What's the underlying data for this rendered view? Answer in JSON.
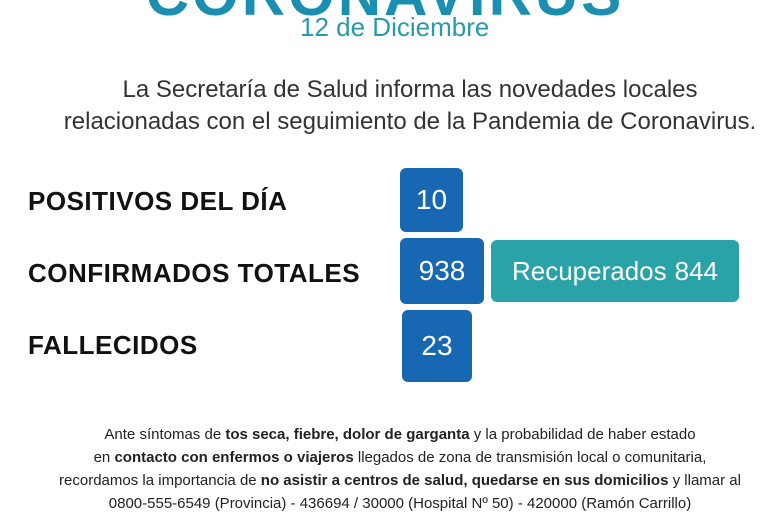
{
  "header": {
    "title": "CORONAVIRUS",
    "date": "12 de Diciembre"
  },
  "intro": {
    "lines": [
      "La Secretaría de Salud informa las novedades locales",
      "relacionadas con el seguimiento de la Pandemia de Coronavirus."
    ]
  },
  "stats": [
    {
      "label": "POSITIVOS DEL DÍA",
      "value": 10
    },
    {
      "label": "CONFIRMADOS TOTALES",
      "value": 938
    },
    {
      "label": "FALLECIDOS",
      "value": 23
    }
  ],
  "recovered": {
    "label": "Recuperados",
    "value": 844
  },
  "footer": {
    "lines": [
      [
        {
          "text": "Ante síntomas de ",
          "bold": false
        },
        {
          "text": "tos seca, fiebre, dolor de garganta",
          "bold": true
        },
        {
          "text": " y la probabilidad de haber estado",
          "bold": false
        }
      ],
      [
        {
          "text": "en ",
          "bold": false
        },
        {
          "text": "contacto con enfermos o viajeros",
          "bold": true
        },
        {
          "text": " llegados de zona de transmisión local o comunitaria,",
          "bold": false
        }
      ],
      [
        {
          "text": "recordamos la importancia de ",
          "bold": false
        },
        {
          "text": "no asistir a centros de salud, quedarse en sus domicilios",
          "bold": true
        },
        {
          "text": " y llamar al",
          "bold": false
        }
      ],
      [
        {
          "text": "0800-555-6549 (Provincia) - 436694 / 30000 (Hospital Nº 50) - 420000 (Ramón Carrillo)",
          "bold": false
        }
      ]
    ]
  }
}
